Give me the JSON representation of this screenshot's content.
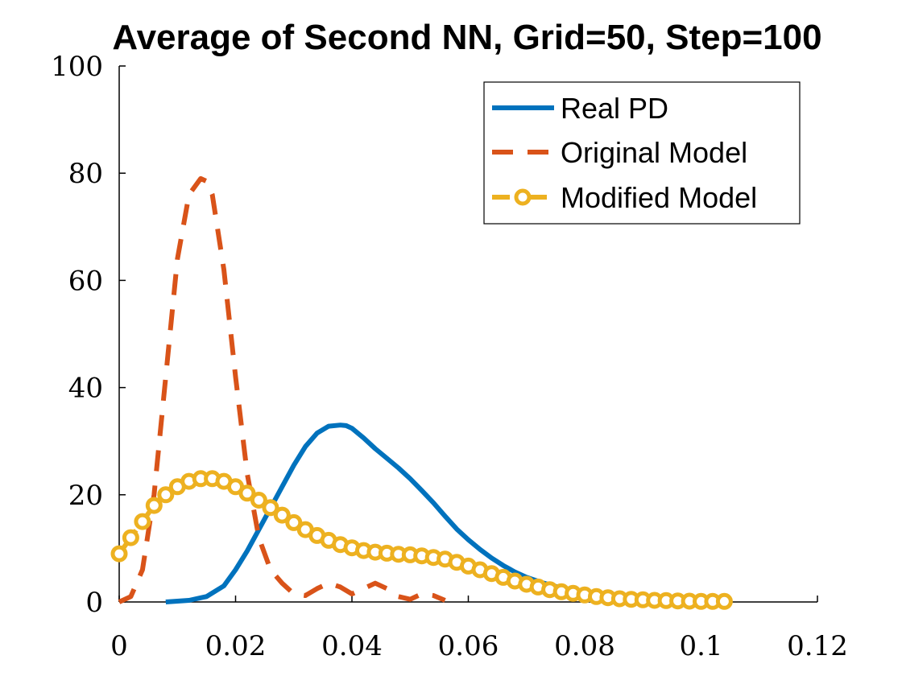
{
  "chart_data": {
    "type": "line",
    "title": "Average of Second NN, Grid=50, Step=100",
    "xlabel": "",
    "ylabel": "",
    "xlim": [
      0,
      0.12
    ],
    "ylim": [
      0,
      100
    ],
    "xticks": [
      "0",
      "0.02",
      "0.04",
      "0.06",
      "0.08",
      "0.1",
      "0.12"
    ],
    "yticks": [
      "0",
      "20",
      "40",
      "60",
      "80",
      "100"
    ],
    "grid": false,
    "legend_position": "top-right",
    "series": [
      {
        "name": "Real PD",
        "color": "#0072BD",
        "style": "solid",
        "x": [
          0.008,
          0.012,
          0.015,
          0.018,
          0.02,
          0.022,
          0.025,
          0.028,
          0.03,
          0.032,
          0.034,
          0.036,
          0.038,
          0.039,
          0.04,
          0.042,
          0.044,
          0.046,
          0.048,
          0.05,
          0.052,
          0.054,
          0.056,
          0.058,
          0.06,
          0.062,
          0.064,
          0.066,
          0.068,
          0.07,
          0.073,
          0.076,
          0.08,
          0.085,
          0.09
        ],
        "y": [
          0,
          0.3,
          1.0,
          3.0,
          6.0,
          9.5,
          15.5,
          21.5,
          25.5,
          29.0,
          31.5,
          32.8,
          33.0,
          32.9,
          32.4,
          30.6,
          28.6,
          26.8,
          25.0,
          23.0,
          20.8,
          18.5,
          16.0,
          13.6,
          11.6,
          9.8,
          8.2,
          6.8,
          5.6,
          4.6,
          3.5,
          2.6,
          1.7,
          0.8,
          0.3
        ]
      },
      {
        "name": "Original Model",
        "color": "#D95319",
        "style": "dashed",
        "x": [
          0.0,
          0.002,
          0.004,
          0.006,
          0.008,
          0.01,
          0.012,
          0.014,
          0.015,
          0.016,
          0.018,
          0.02,
          0.022,
          0.024,
          0.026,
          0.028,
          0.03,
          0.032,
          0.034,
          0.036,
          0.038,
          0.04,
          0.042,
          0.044,
          0.046,
          0.048,
          0.05,
          0.052,
          0.054,
          0.056
        ],
        "y": [
          0,
          1.0,
          6.0,
          20.0,
          42.0,
          64.0,
          76.0,
          79.0,
          78.5,
          76.0,
          62.0,
          42.0,
          24.0,
          12.0,
          6.0,
          3.5,
          1.5,
          1.2,
          2.5,
          3.5,
          2.8,
          1.5,
          2.5,
          3.5,
          2.5,
          1.0,
          0.5,
          1.5,
          1.2,
          0.3
        ]
      },
      {
        "name": "Modified Model",
        "color": "#EDB120",
        "style": "dash-dot-circle",
        "x": [
          0.0,
          0.002,
          0.004,
          0.006,
          0.008,
          0.01,
          0.012,
          0.014,
          0.016,
          0.018,
          0.02,
          0.022,
          0.024,
          0.026,
          0.028,
          0.03,
          0.032,
          0.034,
          0.036,
          0.038,
          0.04,
          0.042,
          0.044,
          0.046,
          0.048,
          0.05,
          0.052,
          0.054,
          0.056,
          0.058,
          0.06,
          0.062,
          0.064,
          0.066,
          0.068,
          0.07,
          0.072,
          0.074,
          0.076,
          0.078,
          0.08,
          0.082,
          0.084,
          0.086,
          0.088,
          0.09,
          0.092,
          0.094,
          0.096,
          0.098,
          0.1,
          0.102,
          0.104
        ],
        "y": [
          9.0,
          12.0,
          15.0,
          18.0,
          20.0,
          21.5,
          22.5,
          23.0,
          23.0,
          22.5,
          21.5,
          20.3,
          19.0,
          17.6,
          16.2,
          14.8,
          13.5,
          12.4,
          11.5,
          10.7,
          10.1,
          9.6,
          9.3,
          9.1,
          8.9,
          8.8,
          8.6,
          8.3,
          8.0,
          7.4,
          6.7,
          6.0,
          5.3,
          4.6,
          3.9,
          3.3,
          2.8,
          2.3,
          1.9,
          1.6,
          1.3,
          1.0,
          0.8,
          0.6,
          0.5,
          0.4,
          0.3,
          0.25,
          0.2,
          0.15,
          0.1,
          0.1,
          0.1
        ]
      }
    ]
  }
}
